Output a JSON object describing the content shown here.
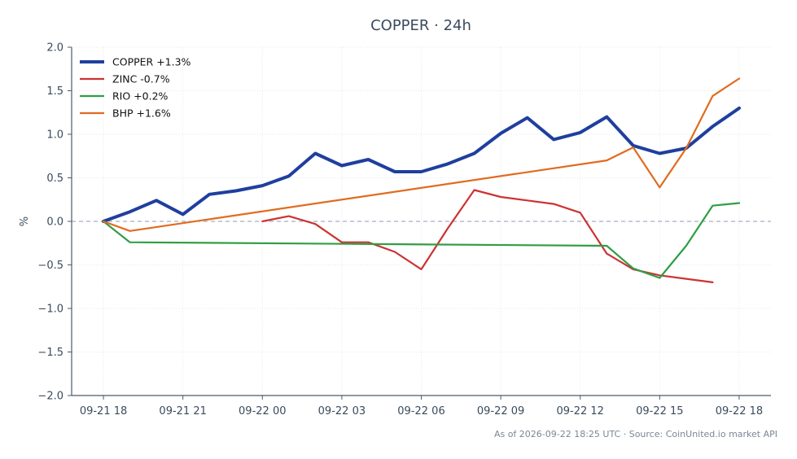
{
  "chart_data": {
    "type": "line",
    "title": "COPPER · 24h",
    "ylabel": "%",
    "xlabel": "",
    "ylim": [
      -2.0,
      2.0
    ],
    "yticks": [
      2.0,
      1.5,
      1.0,
      0.5,
      0.0,
      -0.5,
      -1.0,
      -1.5,
      -2.0
    ],
    "ytick_labels": [
      "2.0",
      "1.5",
      "1.0",
      "0.5",
      "0.0",
      "−0.5",
      "−1.0",
      "−1.5",
      "−2.0"
    ],
    "xlim": [
      -1.2,
      25.2
    ],
    "xtick_positions": [
      0,
      3,
      6,
      9,
      12,
      15,
      18,
      21,
      24
    ],
    "xtick_labels": [
      "09-21 18",
      "09-21 21",
      "09-22 00",
      "09-22 03",
      "09-22 06",
      "09-22 09",
      "09-22 12",
      "09-22 15",
      "09-22 18"
    ],
    "grid": true,
    "zero_line": true,
    "legend_position": "top-left",
    "series": [
      {
        "name": "COPPER +1.3%",
        "color": "#1f3f9e",
        "width": 4,
        "x": [
          0,
          1,
          2,
          3,
          4,
          5,
          6,
          7,
          8,
          9,
          10,
          11,
          12,
          13,
          14,
          15,
          16,
          17,
          18,
          19,
          20,
          21,
          22,
          23,
          24
        ],
        "y": [
          0.0,
          0.11,
          0.24,
          0.08,
          0.31,
          0.35,
          0.41,
          0.52,
          0.78,
          0.64,
          0.71,
          0.57,
          0.57,
          0.66,
          0.78,
          1.01,
          1.19,
          0.94,
          1.02,
          1.2,
          0.87,
          0.78,
          0.84,
          1.09,
          1.3
        ]
      },
      {
        "name": "ZINC -0.7%",
        "color": "#cc3333",
        "width": 2.2,
        "x": [
          6,
          7,
          8,
          9,
          10,
          11,
          12,
          13,
          14,
          15,
          16,
          17,
          18,
          19,
          20,
          21,
          22,
          23
        ],
        "y": [
          0.0,
          0.06,
          -0.03,
          -0.24,
          -0.24,
          -0.35,
          -0.55,
          -0.08,
          0.36,
          0.28,
          0.24,
          0.2,
          0.1,
          -0.37,
          -0.55,
          -0.62,
          -0.66,
          -0.7
        ]
      },
      {
        "name": "RIO +0.2%",
        "color": "#2f9e44",
        "width": 2.2,
        "x": [
          0,
          1,
          19,
          20,
          21,
          22,
          23,
          24
        ],
        "y": [
          0.0,
          -0.24,
          -0.28,
          -0.54,
          -0.65,
          -0.28,
          0.18,
          0.21
        ]
      },
      {
        "name": "BHP +1.6%",
        "color": "#e06b1f",
        "width": 2.2,
        "x": [
          0,
          1,
          19,
          20,
          21,
          22,
          23,
          24
        ],
        "y": [
          0.0,
          -0.11,
          0.7,
          0.85,
          0.39,
          0.84,
          1.44,
          1.64
        ]
      }
    ]
  },
  "footer": {
    "text": "As of 2026-09-22 18:25 UTC · Source: CoinUnited.io market API"
  }
}
